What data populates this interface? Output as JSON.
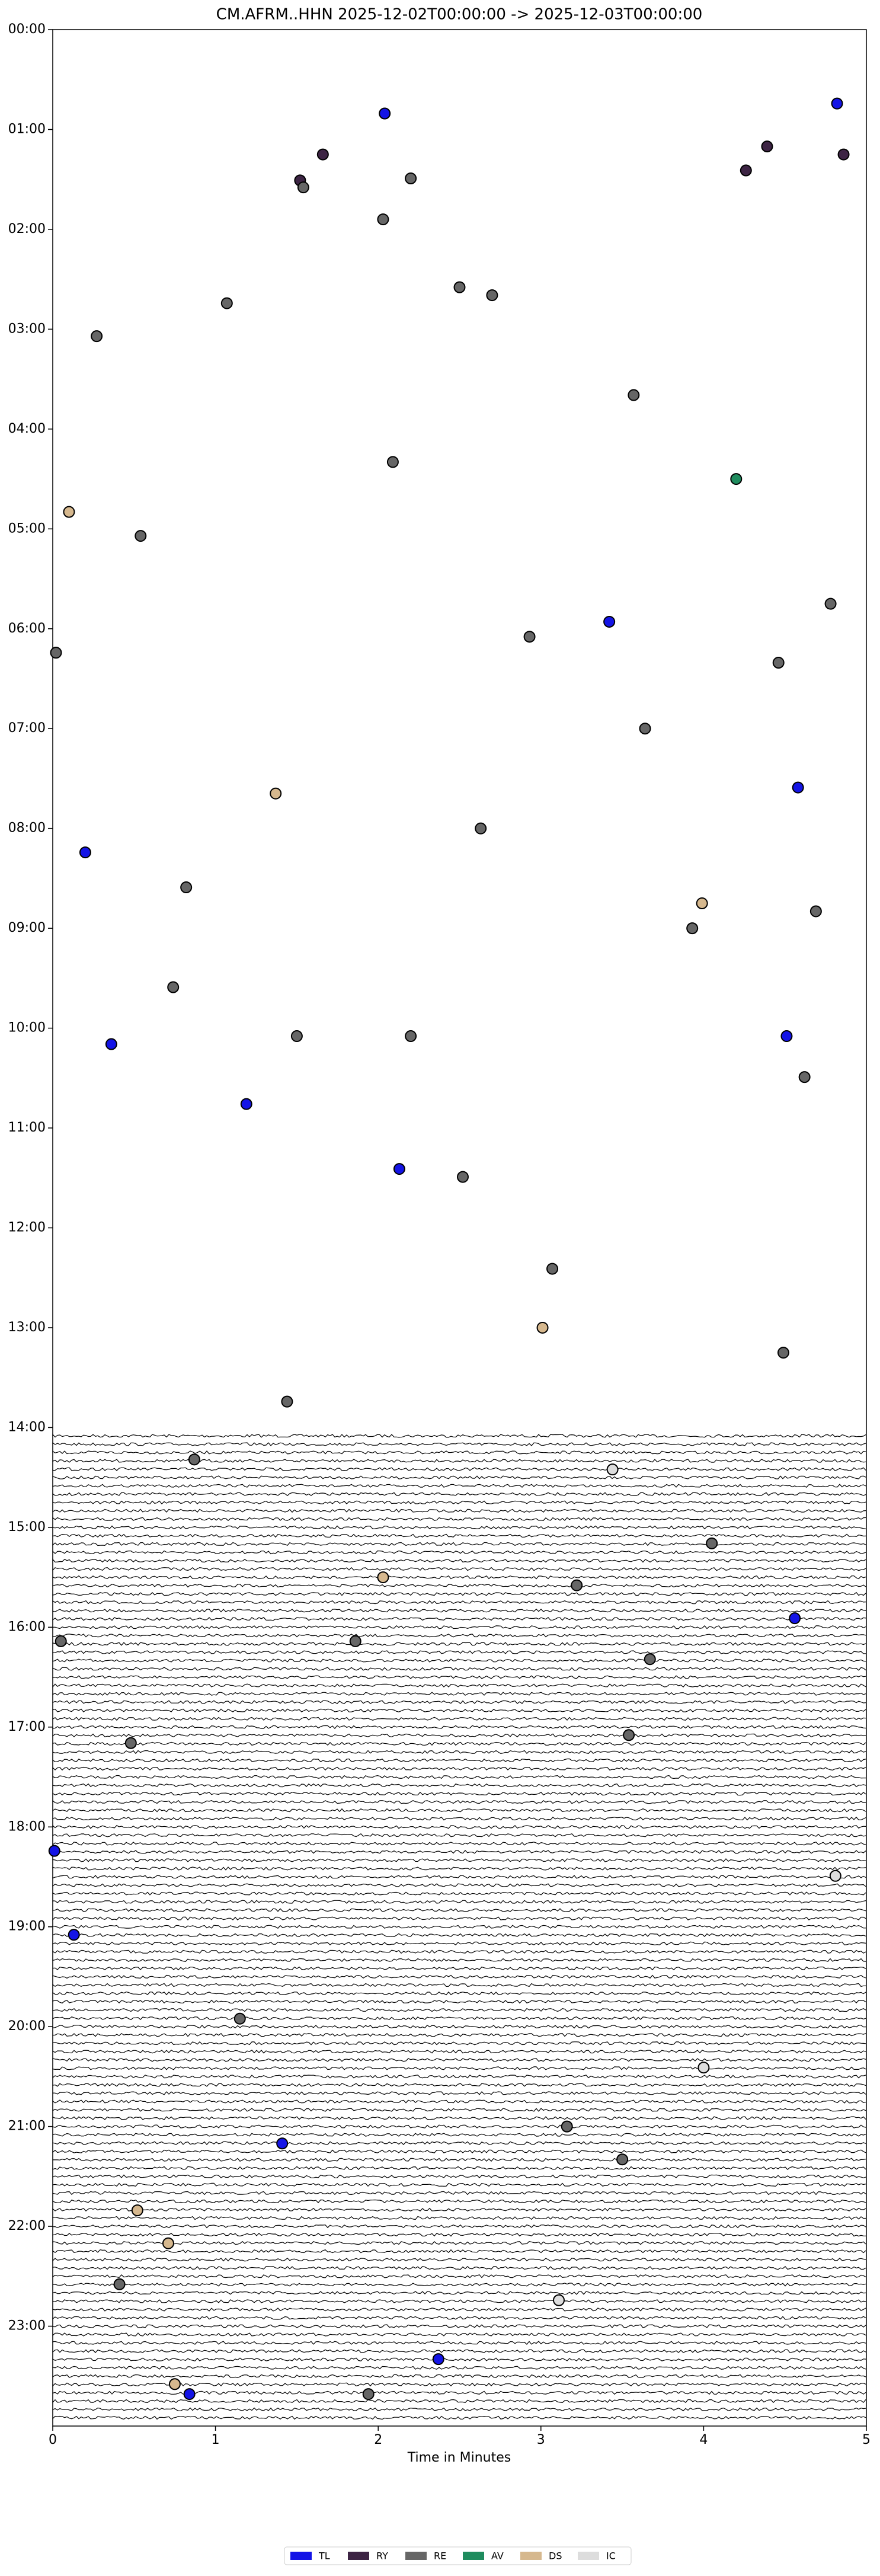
{
  "chart_data": {
    "type": "scatter",
    "title": "CM.AFRM..HHN  2025-12-02T00:00:00 -> 2025-12-03T00:00:00",
    "xlabel": "Time in Minutes",
    "xlim": [
      0,
      5
    ],
    "xticks": [
      0,
      1,
      2,
      3,
      4,
      5
    ],
    "ylim": [
      0,
      24
    ],
    "y_inverted": true,
    "yticks": [
      {
        "value": 0,
        "label": "00:00"
      },
      {
        "value": 1,
        "label": "01:00"
      },
      {
        "value": 2,
        "label": "02:00"
      },
      {
        "value": 3,
        "label": "03:00"
      },
      {
        "value": 4,
        "label": "04:00"
      },
      {
        "value": 5,
        "label": "05:00"
      },
      {
        "value": 6,
        "label": "06:00"
      },
      {
        "value": 7,
        "label": "07:00"
      },
      {
        "value": 8,
        "label": "08:00"
      },
      {
        "value": 9,
        "label": "09:00"
      },
      {
        "value": 10,
        "label": "10:00"
      },
      {
        "value": 11,
        "label": "11:00"
      },
      {
        "value": 12,
        "label": "12:00"
      },
      {
        "value": 13,
        "label": "13:00"
      },
      {
        "value": 14,
        "label": "14:00"
      },
      {
        "value": 15,
        "label": "15:00"
      },
      {
        "value": 16,
        "label": "16:00"
      },
      {
        "value": 17,
        "label": "17:00"
      },
      {
        "value": 18,
        "label": "18:00"
      },
      {
        "value": 19,
        "label": "19:00"
      },
      {
        "value": 20,
        "label": "20:00"
      },
      {
        "value": 21,
        "label": "21:00"
      },
      {
        "value": 22,
        "label": "22:00"
      },
      {
        "value": 23,
        "label": "23:00"
      }
    ],
    "legend": "bottom",
    "series": [
      {
        "name": "TL",
        "color": "#1414e6",
        "x": [
          2.04,
          4.82,
          3.42,
          4.58,
          0.2,
          0.36,
          4.51,
          1.19,
          2.13,
          4.56,
          0.01,
          0.13,
          1.41,
          2.37,
          0.84
        ],
        "y": [
          0.84,
          0.74,
          5.93,
          7.59,
          8.24,
          10.16,
          10.08,
          10.76,
          11.41,
          15.91,
          18.24,
          19.08,
          21.17,
          23.33,
          23.68
        ]
      },
      {
        "name": "RY",
        "color": "#3d2444",
        "x": [
          1.52,
          1.66,
          4.26,
          4.39,
          4.86
        ],
        "y": [
          1.51,
          1.25,
          1.41,
          1.17,
          1.25
        ]
      },
      {
        "name": "RE",
        "color": "#666666",
        "x": [
          1.54,
          2.2,
          2.03,
          2.5,
          2.7,
          1.07,
          0.27,
          3.57,
          2.09,
          0.54,
          0.02,
          2.93,
          4.46,
          4.78,
          3.64,
          2.63,
          0.82,
          3.93,
          4.69,
          0.74,
          1.5,
          2.2,
          4.62,
          2.52,
          3.07,
          4.49,
          1.44,
          0.87,
          4.05,
          3.22,
          0.05,
          1.86,
          3.67,
          3.54,
          0.48,
          1.15,
          3.16,
          3.5,
          0.41,
          1.94
        ],
        "y": [
          1.58,
          1.49,
          1.9,
          2.58,
          2.66,
          2.74,
          3.07,
          3.66,
          4.33,
          5.07,
          6.24,
          6.08,
          6.34,
          5.75,
          7.0,
          8.0,
          8.59,
          9.0,
          8.83,
          9.59,
          10.08,
          10.08,
          10.49,
          11.49,
          12.41,
          13.25,
          13.74,
          14.32,
          15.16,
          15.58,
          16.14,
          16.14,
          16.32,
          17.08,
          17.16,
          19.92,
          21.0,
          21.33,
          22.58,
          23.68
        ]
      },
      {
        "name": "AV",
        "color": "#1f8c5e",
        "x": [
          4.2
        ],
        "y": [
          4.5
        ]
      },
      {
        "name": "DS",
        "color": "#d6b88e",
        "x": [
          0.1,
          1.37,
          3.99,
          3.01,
          2.03,
          0.52,
          0.71,
          0.75
        ],
        "y": [
          4.83,
          7.65,
          8.75,
          13.0,
          15.5,
          21.84,
          22.17,
          23.58
        ]
      },
      {
        "name": "IC",
        "color": "#dddddd",
        "x": [
          3.44,
          4.0,
          3.11,
          4.81
        ],
        "y": [
          14.42,
          20.41,
          22.74,
          18.49
        ]
      }
    ]
  }
}
